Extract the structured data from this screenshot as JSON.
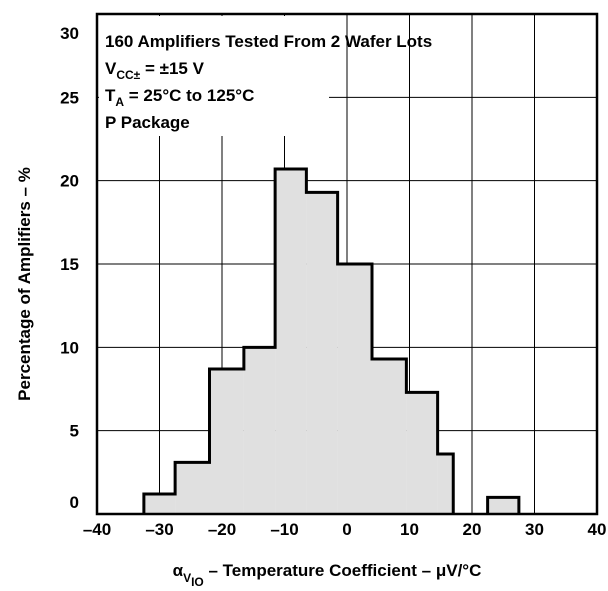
{
  "chart_data": {
    "type": "bar",
    "subtype": "histogram",
    "xlabel_prefix": "α",
    "xlabel_prefix_sub": "V",
    "xlabel_prefix_subsub": "IO",
    "xlabel": " – Temperature Coefficient – μV/°C",
    "ylabel": "Percentage of Amplifiers – %",
    "xlim": [
      -40,
      40
    ],
    "ylim": [
      0,
      30
    ],
    "xticks": [
      -40,
      -30,
      -20,
      -10,
      0,
      10,
      20,
      30,
      40
    ],
    "yticks": [
      0,
      5,
      10,
      15,
      20,
      25,
      30
    ],
    "xtick_labels": [
      "–40",
      "–30",
      "–20",
      "–10",
      "0",
      "10",
      "20",
      "30",
      "40"
    ],
    "ytick_labels": [
      "0",
      "5",
      "10",
      "15",
      "20",
      "25",
      "30"
    ],
    "grid": true,
    "bin_edges": [
      -32.5,
      -27.5,
      -22,
      -16.5,
      -11.5,
      -6.5,
      -1.5,
      4,
      9.5,
      14.5,
      17,
      22.5,
      27.5
    ],
    "values": [
      1.2,
      3.1,
      8.7,
      10,
      20.7,
      19.3,
      15,
      9.3,
      7.3,
      3.6,
      0,
      1
    ],
    "bar_fill": "#e0e0e0",
    "line_color": "#000000",
    "annotations": [
      {
        "parts": [
          {
            "t": "160 Amplifiers Tested From 2 Wafer Lots"
          }
        ]
      },
      {
        "parts": [
          {
            "t": "V"
          },
          {
            "t": "CC±",
            "sub": true
          },
          {
            "t": " = ±15 V"
          }
        ]
      },
      {
        "parts": [
          {
            "t": "T"
          },
          {
            "t": "A",
            "sub": true
          },
          {
            "t": " = 25°C to 125°C"
          }
        ]
      },
      {
        "parts": [
          {
            "t": "P Package"
          }
        ]
      }
    ]
  }
}
